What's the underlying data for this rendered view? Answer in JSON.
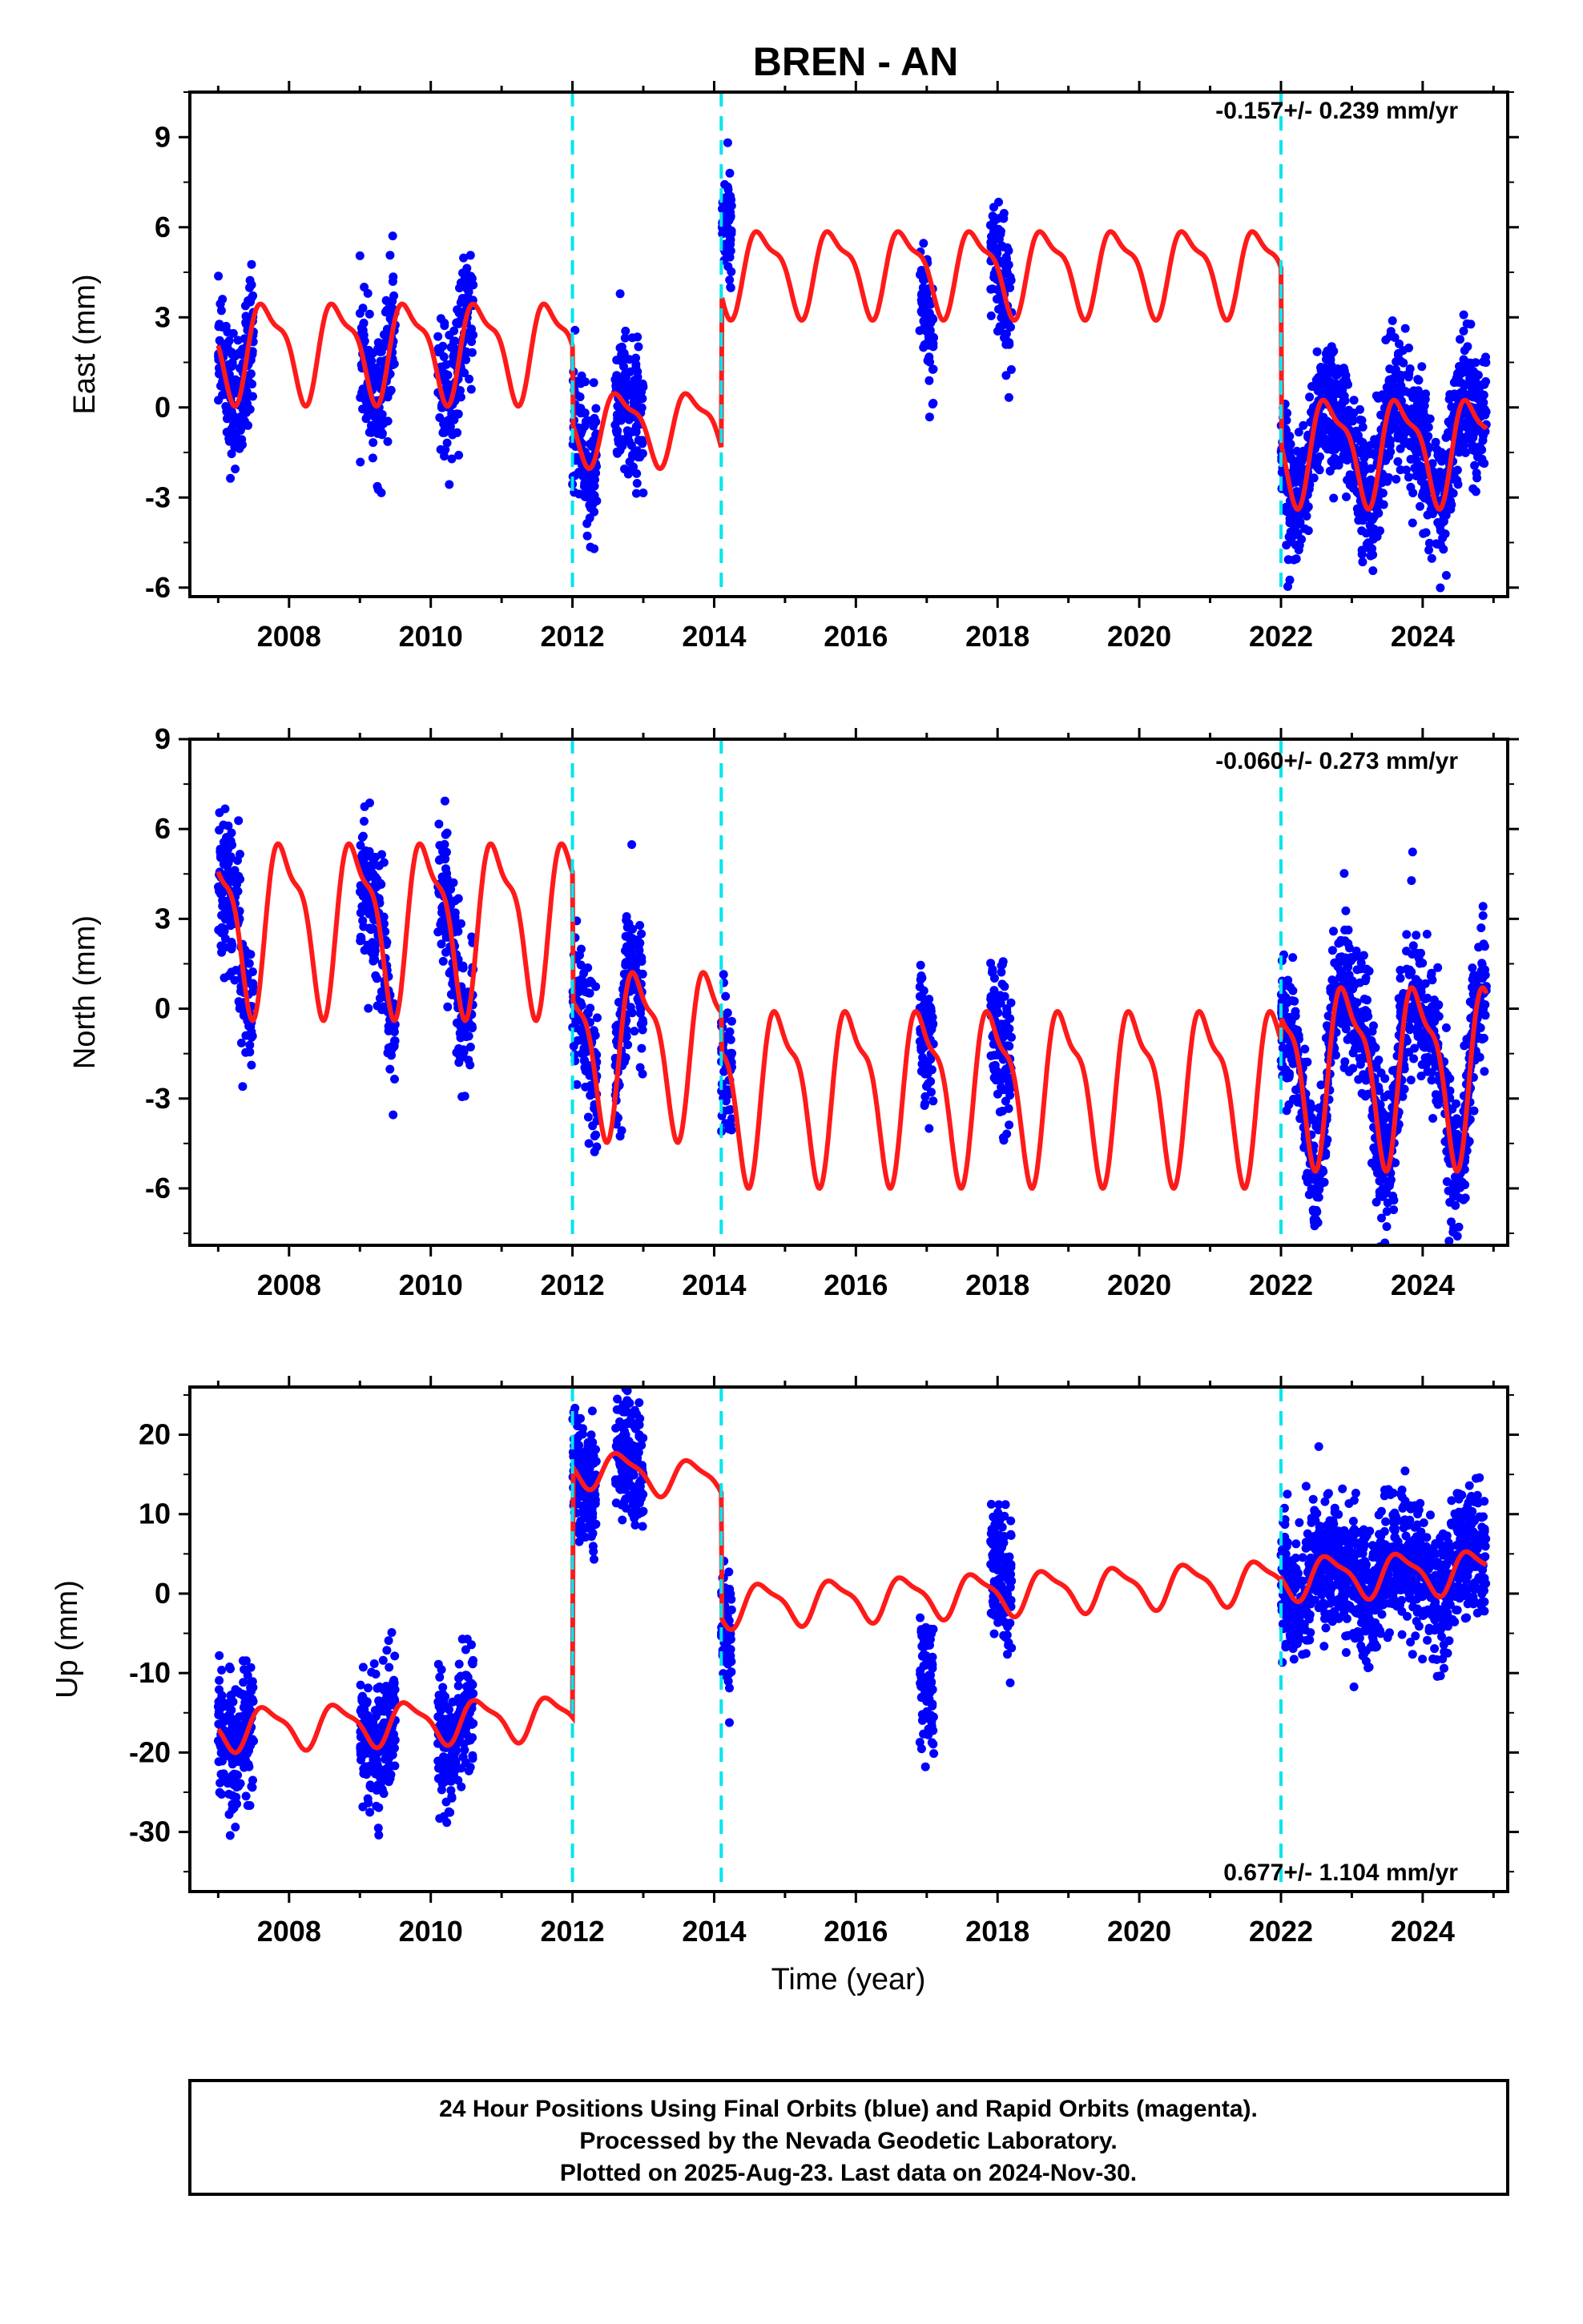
{
  "title": "BREN - AN",
  "x_axis_label": "Time (year)",
  "x_ticks": [
    "2008",
    "2010",
    "2012",
    "2014",
    "2016",
    "2018",
    "2020",
    "2022",
    "2024"
  ],
  "footer": {
    "line1": "24 Hour Positions Using Final Orbits (blue) and Rapid Orbits (magenta).",
    "line2": "Processed by the Nevada Geodetic Laboratory.",
    "line3": "Plotted on 2025-Aug-23. Last data on 2024-Nov-30."
  },
  "colors": {
    "observations": "#0000ff",
    "model": "#ff1a1a",
    "offsets": "#00e5ee",
    "axis": "#000000"
  },
  "chart_data": [
    {
      "type": "scatter",
      "panel": "East",
      "ylabel": "East (mm)",
      "rate_text": "-0.157+/- 0.239 mm/yr",
      "xlim": [
        2006.6,
        2025.2
      ],
      "ylim": [
        -6.3,
        10.5
      ],
      "y_ticks": [
        -6,
        -3,
        0,
        3,
        6,
        9
      ],
      "offset_epochs": [
        2012.0,
        2014.1,
        2022.0
      ],
      "data_windows": [
        [
          2007.0,
          2007.5
        ],
        [
          2009.0,
          2009.5
        ],
        [
          2010.1,
          2010.6
        ],
        [
          2012.0,
          2012.35
        ],
        [
          2012.6,
          2013.0
        ],
        [
          2014.1,
          2014.25
        ],
        [
          2016.9,
          2017.1
        ],
        [
          2017.9,
          2018.2
        ],
        [
          2022.0,
          2024.9
        ]
      ],
      "model": {
        "segments": [
          {
            "from": 2007.0,
            "to": 2012.0,
            "level": 2.0,
            "amp": 1.5,
            "pulse": [
              6.0,
              2.2
            ]
          },
          {
            "from": 2012.0,
            "to": 2014.1,
            "level": -0.6,
            "amp": 1.1,
            "pulse": [
              6.0,
              2.2
            ]
          },
          {
            "from": 2014.1,
            "to": 2022.0,
            "level": 4.6,
            "amp": 1.3,
            "pulse": [
              6.0,
              2.2
            ]
          },
          {
            "from": 2022.0,
            "to": 2024.9,
            "level": -1.3,
            "amp": 1.6,
            "pulse": [
              6.0,
              2.2
            ]
          }
        ],
        "phase": 2007.45
      },
      "scatter_noise": 1.1,
      "period_shifts": [
        {
          "from": 2014.1,
          "to": 2014.4,
          "shift": 3.0
        },
        {
          "from": 2016.9,
          "to": 2017.15,
          "shift": -1.5
        }
      ]
    },
    {
      "type": "scatter",
      "panel": "North",
      "ylabel": "North (mm)",
      "rate_text": "-0.060+/- 0.273 mm/yr",
      "xlim": [
        2006.6,
        2025.2
      ],
      "ylim": [
        -7.9,
        9.0
      ],
      "y_ticks": [
        -6,
        -3,
        0,
        3,
        6,
        9
      ],
      "offset_epochs": [
        2012.0,
        2014.1,
        2022.0
      ],
      "data_windows": [
        [
          2007.0,
          2007.5
        ],
        [
          2009.0,
          2009.5
        ],
        [
          2010.1,
          2010.6
        ],
        [
          2012.0,
          2012.35
        ],
        [
          2012.6,
          2013.0
        ],
        [
          2014.1,
          2014.25
        ],
        [
          2016.9,
          2017.1
        ],
        [
          2017.9,
          2018.2
        ],
        [
          2022.0,
          2024.9
        ]
      ],
      "model": {
        "segments": [
          {
            "from": 2007.0,
            "to": 2012.0,
            "level": 3.0,
            "amp": 2.6,
            "pulse": [
              6.0,
              2.2
            ]
          },
          {
            "from": 2012.0,
            "to": 2014.1,
            "level": -1.2,
            "amp": 2.5,
            "pulse": [
              6.0,
              2.2
            ]
          },
          {
            "from": 2014.1,
            "to": 2022.0,
            "level": -2.6,
            "amp": 2.6,
            "pulse": [
              6.0,
              2.2
            ]
          },
          {
            "from": 2022.0,
            "to": 2024.9,
            "level": -1.9,
            "amp": 2.7,
            "pulse": [
              6.0,
              2.2
            ]
          }
        ],
        "phase": 2007.7
      },
      "scatter_noise": 1.2,
      "period_shifts": [
        {
          "from": 2009.6,
          "to": 2009.9,
          "shift": 2.0
        }
      ]
    },
    {
      "type": "scatter",
      "panel": "Up",
      "ylabel": "Up (mm)",
      "rate_text": "0.677+/- 1.104 mm/yr",
      "xlim": [
        2006.6,
        2025.2
      ],
      "ylim": [
        -37.5,
        26.0
      ],
      "y_ticks": [
        -30,
        -20,
        -10,
        0,
        10,
        20
      ],
      "offset_epochs": [
        2012.0,
        2014.1,
        2022.0
      ],
      "data_windows": [
        [
          2007.0,
          2007.5
        ],
        [
          2009.0,
          2009.5
        ],
        [
          2010.1,
          2010.6
        ],
        [
          2012.0,
          2012.35
        ],
        [
          2012.6,
          2013.0
        ],
        [
          2014.1,
          2014.25
        ],
        [
          2016.9,
          2017.1
        ],
        [
          2017.9,
          2018.2
        ],
        [
          2022.0,
          2024.9
        ]
      ],
      "model": {
        "segments": [
          {
            "from": 2007.0,
            "to": 2012.0,
            "level": -17.0,
            "amp": 2.5,
            "trend": 0.3
          },
          {
            "from": 2012.0,
            "to": 2014.1,
            "level": 16.0,
            "amp": 2.2,
            "trend": -0.9
          },
          {
            "from": 2014.1,
            "to": 2022.0,
            "level": -1.5,
            "amp": 2.5,
            "trend": 0.4
          },
          {
            "from": 2022.0,
            "to": 2024.9,
            "level": 2.0,
            "amp": 2.5,
            "trend": 0.3
          }
        ],
        "phase": 2007.45
      },
      "scatter_noise": 4.0,
      "period_shifts": [
        {
          "from": 2016.9,
          "to": 2017.15,
          "shift": -11.0
        },
        {
          "from": 2017.9,
          "to": 2018.25,
          "shift": 3.0
        }
      ]
    }
  ]
}
